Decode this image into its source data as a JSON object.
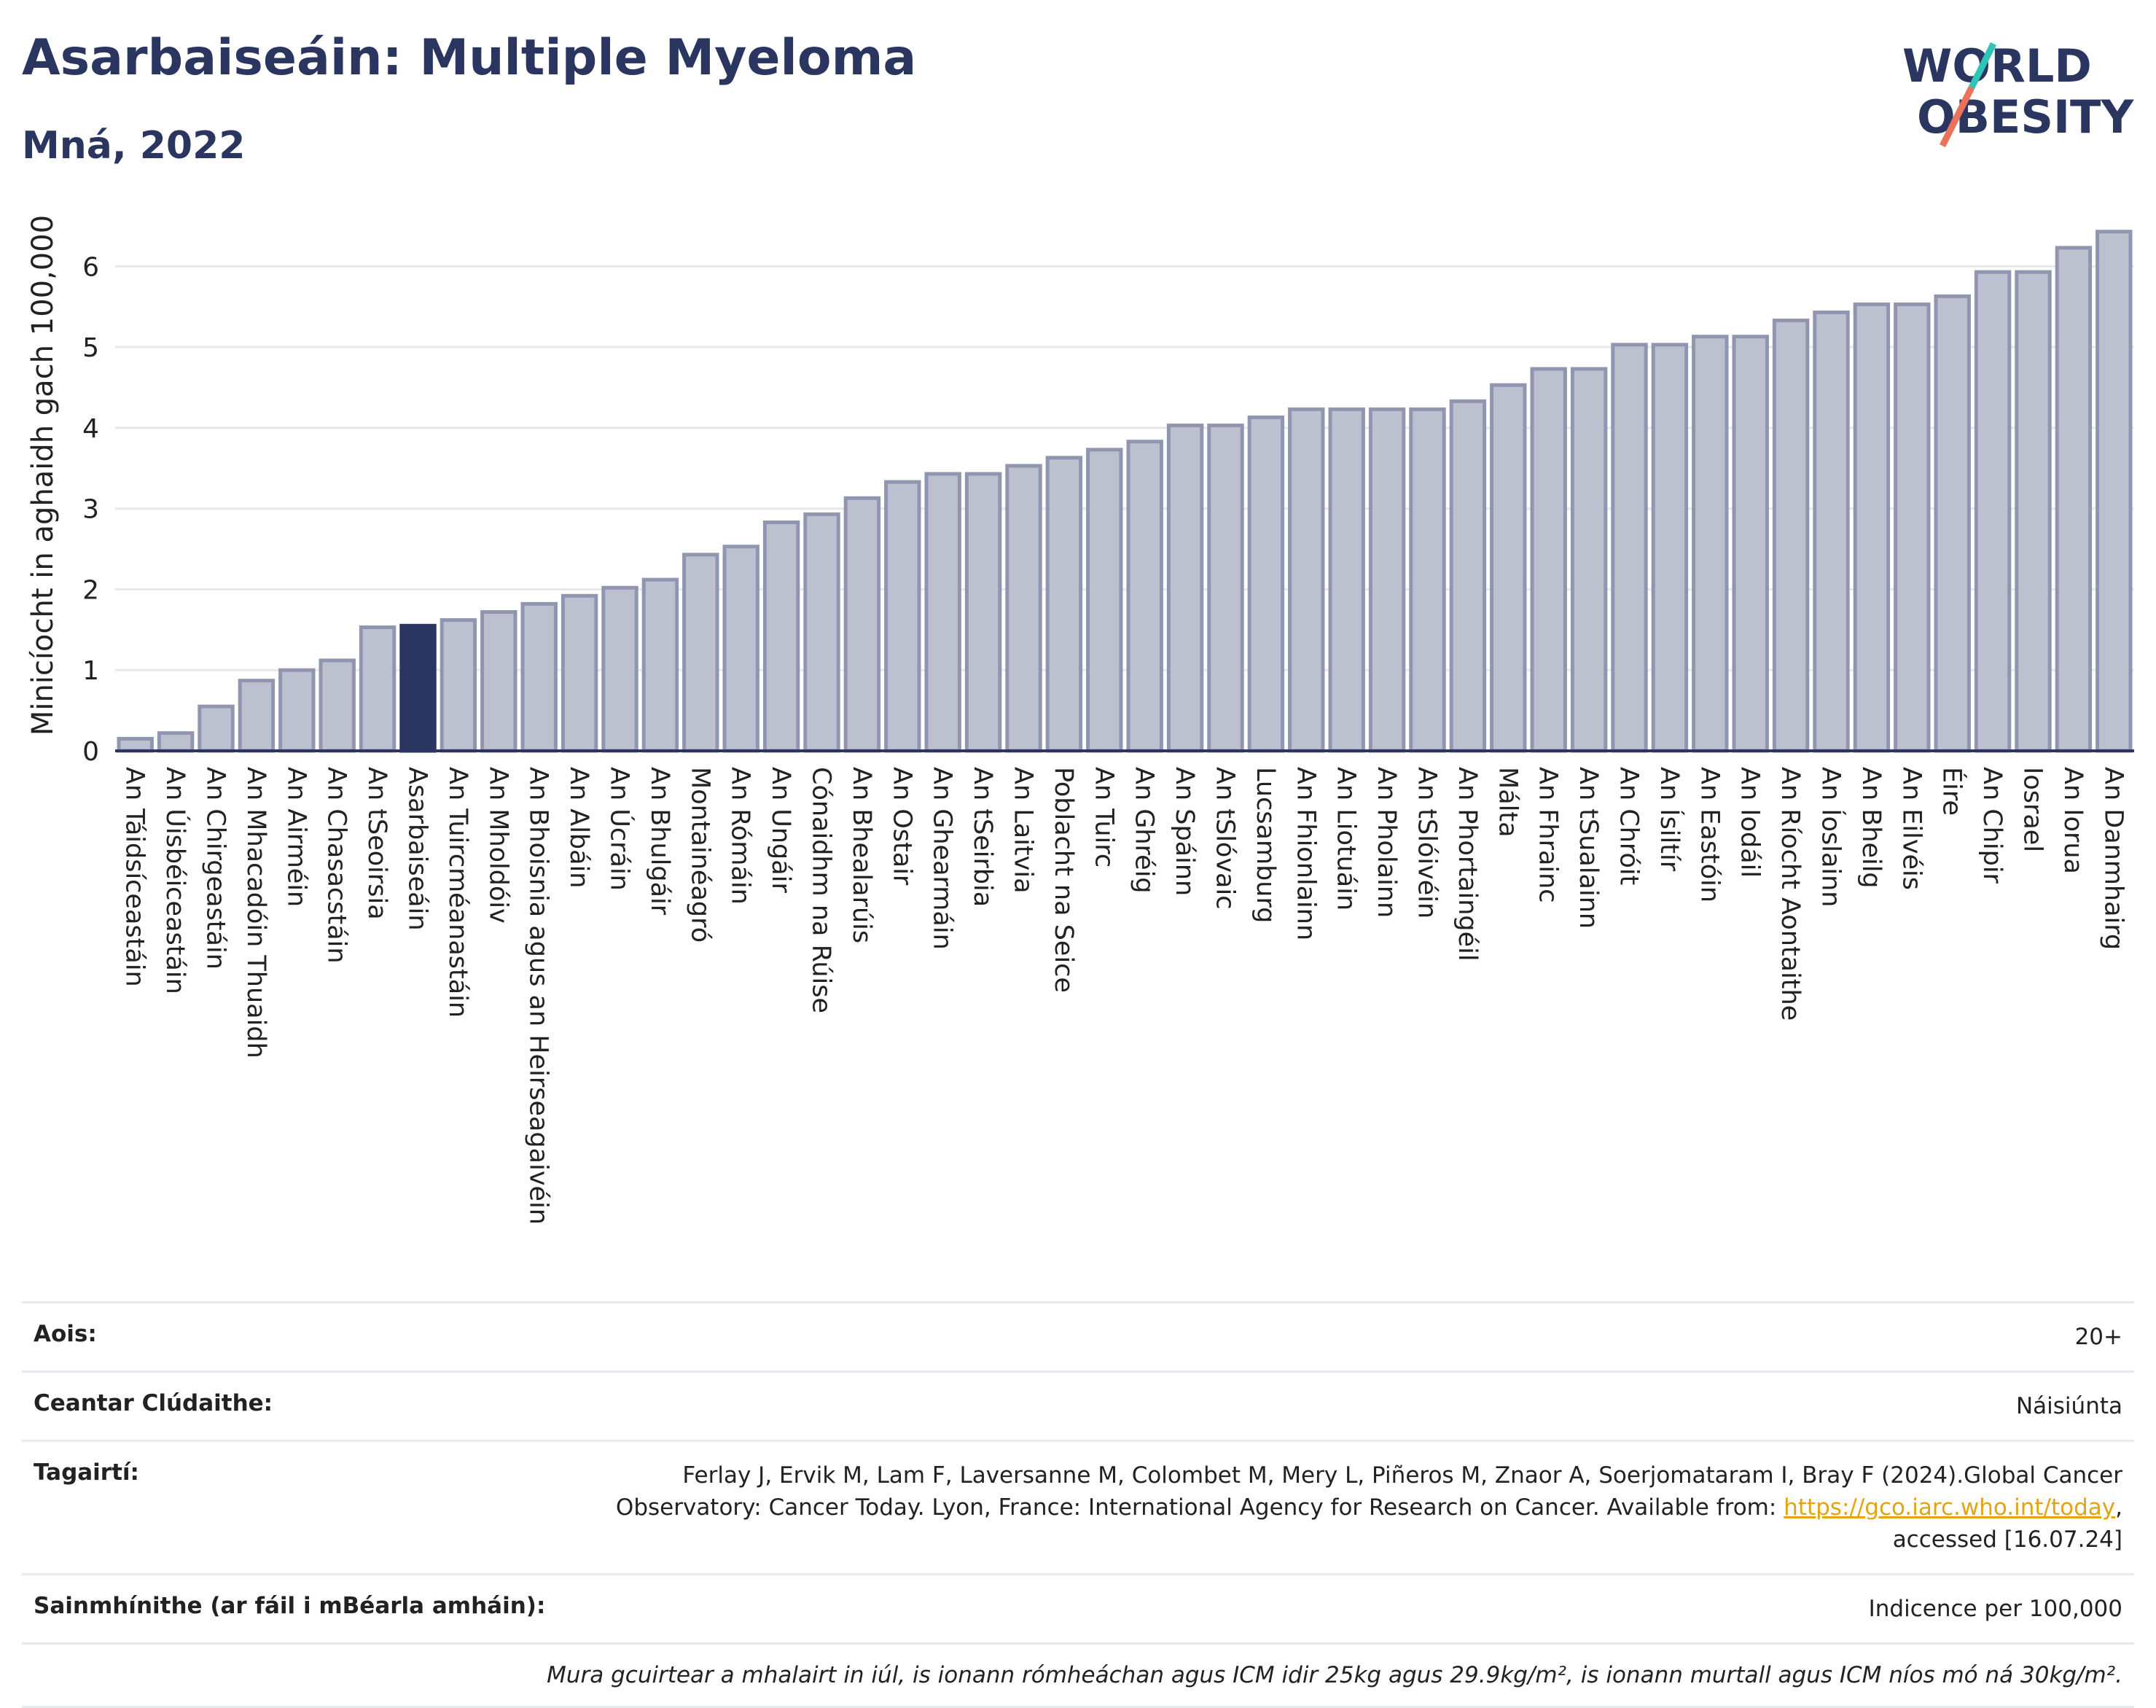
{
  "header": {
    "title": "Asarbaiseáin: Multiple Myeloma",
    "subtitle": "Mná, 2022",
    "logo_line1": "WORLD",
    "logo_line2": "OBESITY"
  },
  "colors": {
    "bar": "#bcc0cf",
    "bar_stroke": "#9096b0",
    "highlight": "#2a3560",
    "axis": "#2a3560",
    "grid": "#e8e8ec",
    "logo_teal": "#2ec4b6",
    "logo_coral": "#e8735a"
  },
  "chart_data": {
    "type": "bar",
    "ylabel": "Minicíocht in aghaidh gach 100,000",
    "ylim": [
      0,
      6.5
    ],
    "yticks": [
      0,
      1,
      2,
      3,
      4,
      5,
      6
    ],
    "grid": true,
    "highlight_category": "Asarbaiseáin",
    "categories": [
      "An Táidsíceastáin",
      "An Úisbéiceastáin",
      "An Chirgeastáin",
      "An Mhacadóin Thuaidh",
      "An Airméin",
      "An Chasacstáin",
      "An tSeoirsia",
      "Asarbaiseáin",
      "An Tuircméanastáin",
      "An Mholdóiv",
      "An Bhoisnia agus an Heirseagaivéin",
      "An Albáin",
      "An Úcráin",
      "An Bhulgáir",
      "Montainéagró",
      "An Rómáin",
      "An Ungáir",
      "Cónaidhm na Rúise",
      "An Bhealarúis",
      "An Ostair",
      "An Ghearmáin",
      "An tSeirbia",
      "An Laitvia",
      "Poblacht na Seice",
      "An Tuirc",
      "An Ghréig",
      "An Spáinn",
      "An tSlóvaic",
      "Lucsamburg",
      "An Fhionlainn",
      "An Liotuáin",
      "An Pholainn",
      "An tSlóivéin",
      "An Phortaingéil",
      "Málta",
      "An Fhrainc",
      "An tSualainn",
      "An Chróit",
      "An Ísiltír",
      "An Eastóin",
      "An Iodáil",
      "An Ríocht Aontaithe",
      "An Íoslainn",
      "An Bheilg",
      "An Eilvéis",
      "Éire",
      "An Chipir",
      "Iosrael",
      "An Iorua",
      "An Danmhairg"
    ],
    "values": [
      0.15,
      0.22,
      0.55,
      0.87,
      1.0,
      1.12,
      1.53,
      1.55,
      1.62,
      1.72,
      1.82,
      1.92,
      2.02,
      2.12,
      2.43,
      2.53,
      2.83,
      2.93,
      3.13,
      3.33,
      3.43,
      3.43,
      3.53,
      3.63,
      3.73,
      3.83,
      4.03,
      4.03,
      4.13,
      4.23,
      4.23,
      4.23,
      4.23,
      4.33,
      4.53,
      4.73,
      4.73,
      5.03,
      5.03,
      5.13,
      5.13,
      5.33,
      5.43,
      5.53,
      5.53,
      5.63,
      5.93,
      5.93,
      6.23,
      6.43
    ]
  },
  "meta": {
    "age_label": "Aois:",
    "age_value": "20+",
    "coverage_label": "Ceantar Clúdaithe:",
    "coverage_value": "Náisiúnta",
    "refs_label": "Tagairtí:",
    "refs_text_1": "Ferlay J, Ervik M, Lam F, Laversanne M, Colombet M, Mery L, Piñeros M, Znaor A, Soerjomataram I, Bray F (2024).Global Cancer",
    "refs_text_2": "Observatory: Cancer Today. Lyon, France: International Agency for Research on Cancer. Available from: ",
    "refs_link": "https://gco.iarc.who.int/today",
    "refs_text_3": ",",
    "refs_text_4": "accessed [16.07.24]",
    "defs_label": "Sainmhínithe (ar fáil i mBéarla amháin):",
    "defs_value": "Indicence per 100,000",
    "note": "Mura gcuirtear a mhalairt in iúl, is ionann rómheáchan agus ICM idir 25kg agus 29.9kg/m², is ionann murtall agus ICM níos mó ná 30kg/m²."
  }
}
